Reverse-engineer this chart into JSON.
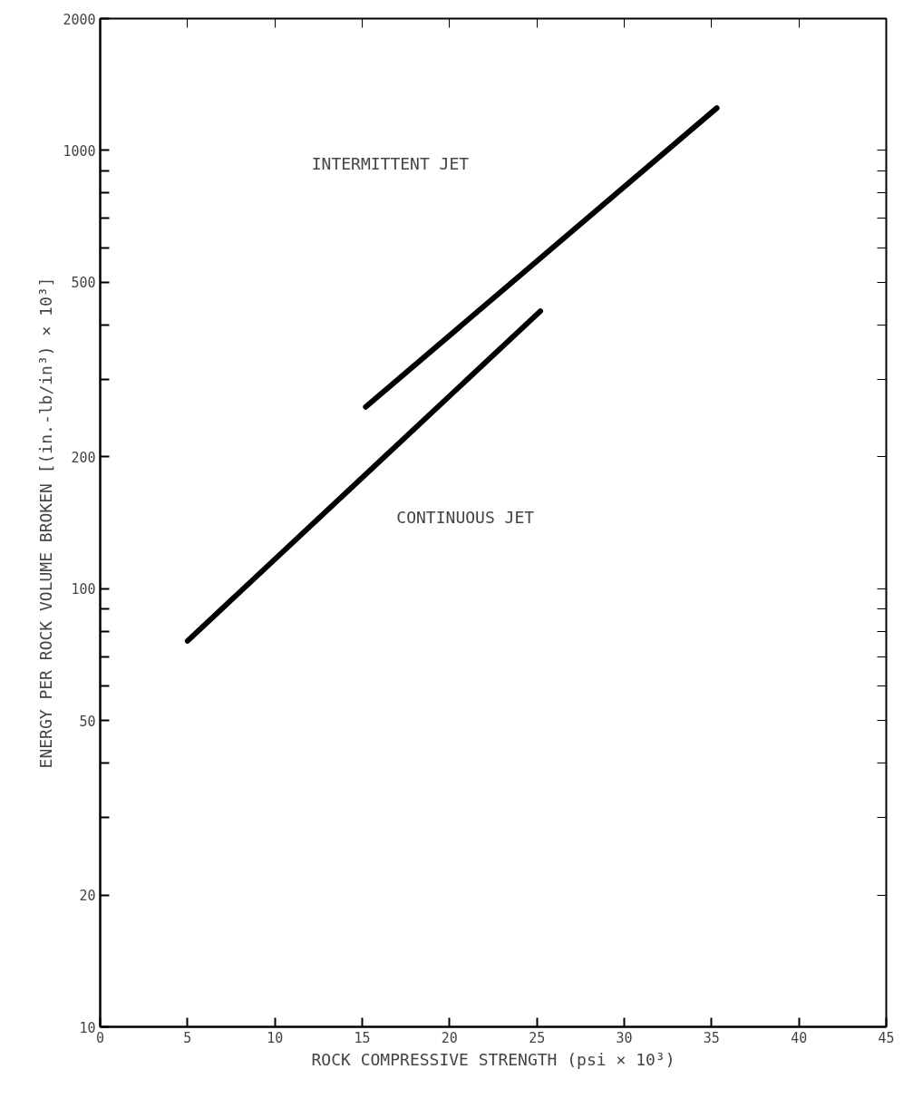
{
  "chart_data": {
    "type": "line",
    "xlabel": "ROCK COMPRESSIVE STRENGTH (psi × 10³)",
    "ylabel": "ENERGY PER ROCK VOLUME BROKEN [(in.-lb/in³) × 10³]",
    "series": [
      {
        "x": [
          15.2,
          35.3
        ],
        "values": [
          260,
          1250
        ],
        "color": "#000000"
      },
      {
        "x": [
          5,
          25.2
        ],
        "values": [
          76,
          430
        ],
        "color": "#000000"
      }
    ],
    "annotations": [
      "INTERMITTENT JET",
      "CONTINUOUS JET"
    ],
    "log": "y",
    "xlim": [
      0,
      45
    ],
    "ylim": [
      10,
      2000
    ],
    "xticks": [
      0,
      5,
      10,
      15,
      20,
      25,
      30,
      35,
      40,
      45
    ],
    "yticks": [
      10,
      20,
      {
        "value": 30,
        "label": null
      },
      {
        "value": 40,
        "label": null
      },
      50,
      {
        "value": 60,
        "label": null
      },
      {
        "value": 70,
        "label": null
      },
      {
        "value": 80,
        "label": null
      },
      {
        "value": 90,
        "label": null
      },
      100,
      200,
      {
        "value": 300,
        "label": null
      },
      {
        "value": 400,
        "label": null
      },
      500,
      {
        "value": 600,
        "label": null
      },
      {
        "value": 700,
        "label": null
      },
      {
        "value": 800,
        "label": null
      },
      {
        "value": 900,
        "label": null
      },
      1000,
      2000
    ],
    "grid": false,
    "marker": "none",
    "line_style": "solid"
  }
}
